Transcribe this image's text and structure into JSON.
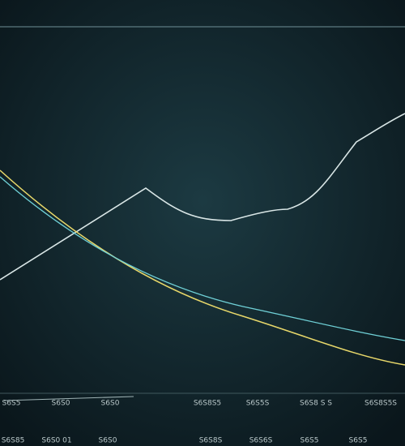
{
  "bottom_axis": {
    "labels": [
      "S6S5",
      "S6S0",
      "S6S0",
      "S6S8S5",
      "S6S5S",
      "S6S8 S S",
      "S6S8S5S"
    ]
  },
  "footer_axis": {
    "labels": [
      "S6S85",
      "S6S0 01",
      "S6S0",
      "S6S8S",
      "S6S6S",
      "S6S5",
      "S6S5"
    ]
  }
}
